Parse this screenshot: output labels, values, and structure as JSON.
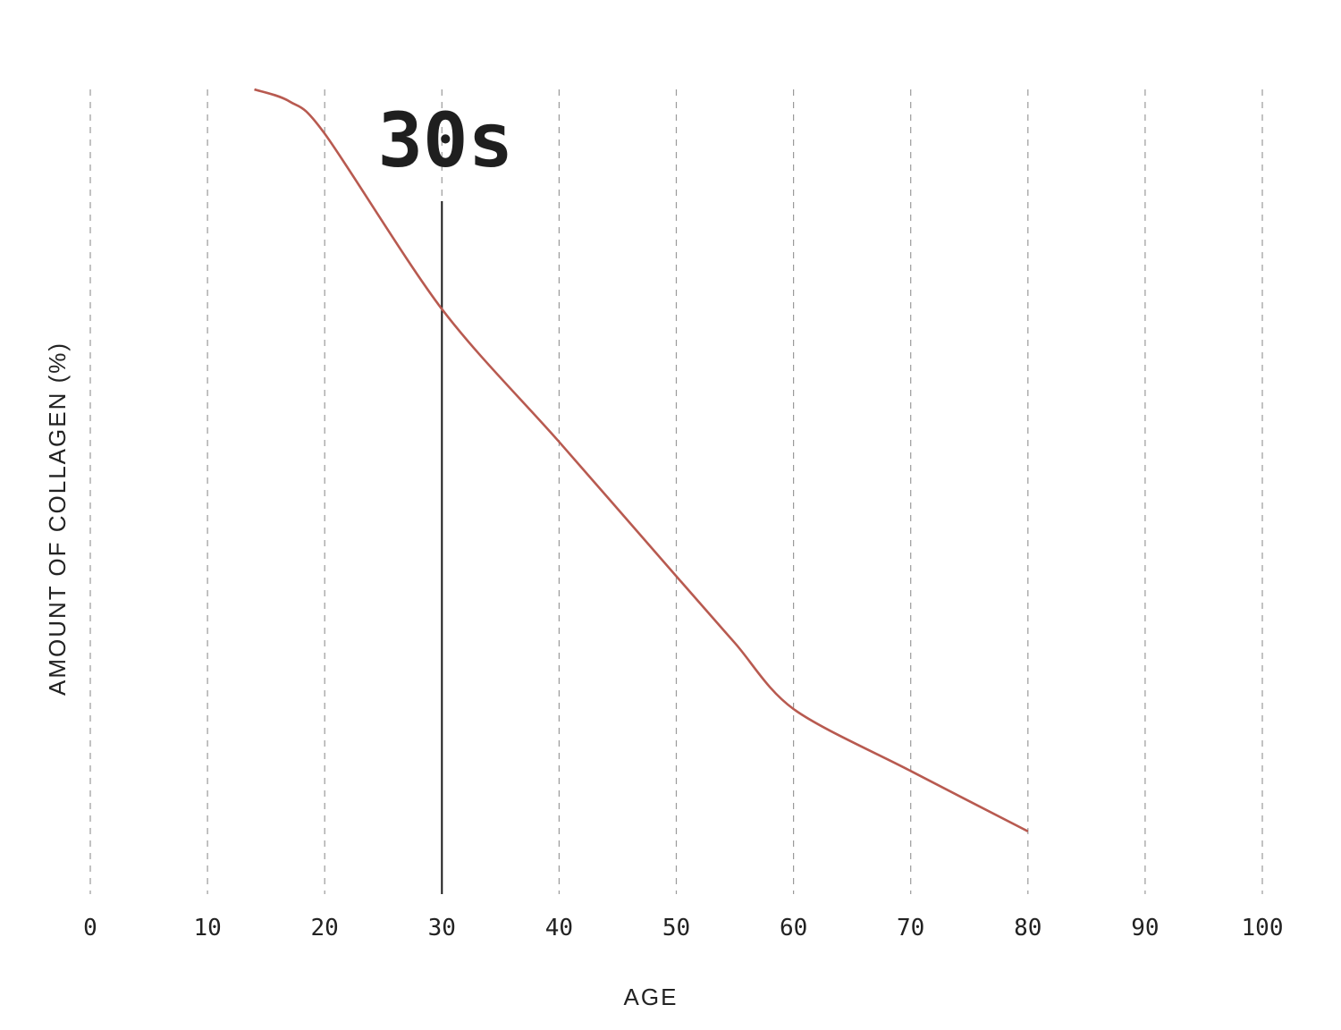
{
  "chart_data": {
    "type": "line",
    "xlabel": "AGE",
    "ylabel": "AMOUNT OF COLLAGEN (%)",
    "x_ticks": [
      "0",
      "10",
      "20",
      "30",
      "40",
      "50",
      "60",
      "70",
      "80",
      "90",
      "100"
    ],
    "xlim": [
      0,
      100
    ],
    "ylim": [
      0,
      100
    ],
    "grid": true,
    "series": [
      {
        "x": [
          14,
          17,
          20,
          30,
          40,
          50,
          55,
          60,
          70,
          80
        ],
        "y": [
          100,
          98.5,
          94.5,
          72.7,
          56.2,
          39.5,
          31.2,
          23,
          15.3,
          7.8
        ]
      }
    ],
    "annotations": [
      {
        "text": "30s",
        "x": 30
      }
    ],
    "colors": {
      "line": "#b85a50",
      "marker": "#1a1a1a",
      "grid": "#9a9a9a"
    }
  }
}
